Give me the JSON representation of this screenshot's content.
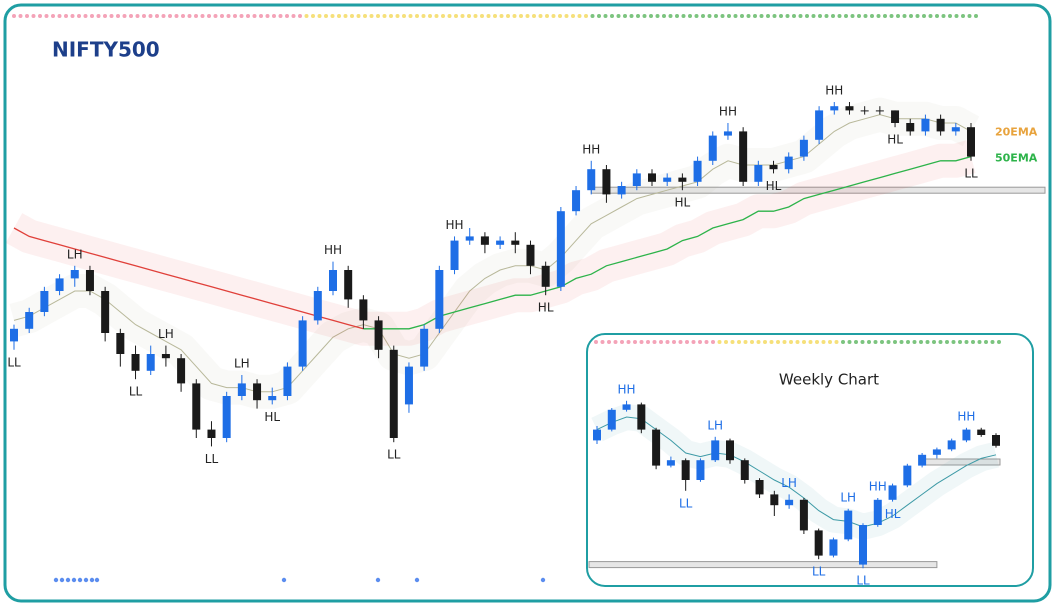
{
  "chart_data": [
    {
      "type": "candlestick",
      "title": "NIFTY500",
      "up_color": "#1e6ee6",
      "down_color": "#1a1a1a",
      "ylim": [
        0,
        100
      ],
      "candles": [
        [
          33,
          37,
          31,
          36
        ],
        [
          36,
          41,
          35,
          40
        ],
        [
          40,
          46,
          39,
          45
        ],
        [
          45,
          49,
          44,
          48
        ],
        [
          48,
          51,
          46,
          50
        ],
        [
          50,
          51,
          44,
          45
        ],
        [
          45,
          46,
          33,
          35
        ],
        [
          35,
          36,
          27,
          30
        ],
        [
          30,
          32,
          24,
          26
        ],
        [
          26,
          32,
          25,
          30
        ],
        [
          30,
          32,
          27,
          29
        ],
        [
          29,
          30,
          21,
          23
        ],
        [
          23,
          24,
          10,
          12
        ],
        [
          12,
          14,
          8,
          10
        ],
        [
          10,
          21,
          9,
          20
        ],
        [
          20,
          25,
          19,
          23
        ],
        [
          23,
          24,
          17,
          19
        ],
        [
          19,
          22,
          18,
          20
        ],
        [
          20,
          28,
          19,
          27
        ],
        [
          27,
          39,
          26,
          38
        ],
        [
          38,
          46,
          37,
          45
        ],
        [
          45,
          52,
          44,
          50
        ],
        [
          50,
          51,
          41,
          43
        ],
        [
          43,
          44,
          36,
          38
        ],
        [
          38,
          39,
          29,
          31
        ],
        [
          31,
          32,
          9,
          10
        ],
        [
          18,
          28,
          16,
          27
        ],
        [
          27,
          37,
          26,
          36
        ],
        [
          36,
          51,
          35,
          50
        ],
        [
          50,
          58,
          49,
          57
        ],
        [
          57,
          60,
          56,
          58
        ],
        [
          58,
          59,
          54,
          56
        ],
        [
          56,
          58,
          55,
          57
        ],
        [
          57,
          59,
          54,
          56
        ],
        [
          56,
          57,
          49,
          51
        ],
        [
          51,
          52,
          44,
          46
        ],
        [
          46,
          65,
          45,
          64
        ],
        [
          64,
          70,
          63,
          69
        ],
        [
          69,
          76,
          68,
          74
        ],
        [
          74,
          75,
          66,
          68
        ],
        [
          68,
          71,
          67,
          70
        ],
        [
          70,
          74,
          69,
          73
        ],
        [
          73,
          74,
          70,
          71
        ],
        [
          71,
          73,
          70,
          72
        ],
        [
          72,
          73,
          69,
          71
        ],
        [
          71,
          77,
          70,
          76
        ],
        [
          76,
          83,
          75,
          82
        ],
        [
          82,
          85,
          81,
          83
        ],
        [
          83,
          84,
          70,
          71
        ],
        [
          71,
          76,
          70,
          75
        ],
        [
          75,
          76,
          73,
          74
        ],
        [
          74,
          78,
          73,
          77
        ],
        [
          77,
          82,
          76,
          81
        ],
        [
          81,
          89,
          80,
          88
        ],
        [
          88,
          90,
          87,
          89
        ],
        [
          89,
          90,
          87,
          88
        ],
        [
          88,
          89,
          87,
          88
        ],
        [
          88,
          89,
          87,
          88
        ],
        [
          88,
          88,
          84,
          85
        ],
        [
          85,
          86,
          82,
          83
        ],
        [
          83,
          87,
          82,
          86
        ],
        [
          86,
          87,
          82,
          83
        ],
        [
          83,
          85,
          82,
          84
        ],
        [
          84,
          85,
          76,
          77
        ]
      ],
      "series": [
        {
          "name": "20EMA",
          "color": "#e8a33d",
          "line_color": "#b8b89a",
          "values": [
            38,
            39,
            41,
            43,
            45,
            45,
            43,
            40,
            37,
            35,
            33,
            31,
            27,
            23,
            22,
            22,
            21,
            21,
            22,
            26,
            30,
            34,
            36,
            37,
            36,
            30,
            29,
            30,
            35,
            40,
            45,
            48,
            50,
            51,
            51,
            50,
            53,
            57,
            61,
            63,
            65,
            67,
            68,
            69,
            70,
            71,
            74,
            76,
            75,
            75,
            75,
            76,
            77,
            80,
            83,
            85,
            86,
            87,
            86,
            86,
            86,
            85,
            85,
            83
          ]
        },
        {
          "name": "50EMA",
          "color": "#2db34a",
          "down_color": "#e0403a",
          "values": [
            60,
            58,
            57,
            56,
            55,
            54,
            53,
            52,
            51,
            50,
            49,
            48,
            47,
            46,
            45,
            44,
            43,
            42,
            41,
            40,
            39,
            38,
            37,
            36,
            36,
            36,
            36,
            37,
            39,
            40,
            41,
            42,
            43,
            44,
            44,
            45,
            46,
            48,
            49,
            51,
            52,
            53,
            54,
            55,
            57,
            58,
            60,
            61,
            62,
            64,
            64,
            65,
            67,
            68,
            69,
            70,
            71,
            72,
            73,
            74,
            75,
            76,
            76,
            77
          ]
        }
      ],
      "support_levels": [
        {
          "value": 69,
          "from": 38
        }
      ],
      "annotations": [
        {
          "text": "LL",
          "at": 0,
          "anchor": "low"
        },
        {
          "text": "LH",
          "at": 4,
          "anchor": "high"
        },
        {
          "text": "LL",
          "at": 8,
          "anchor": "low"
        },
        {
          "text": "LH",
          "at": 10,
          "anchor": "high"
        },
        {
          "text": "LL",
          "at": 13,
          "anchor": "low"
        },
        {
          "text": "LH",
          "at": 15,
          "anchor": "high"
        },
        {
          "text": "HL",
          "at": 17,
          "anchor": "low"
        },
        {
          "text": "HH",
          "at": 21,
          "anchor": "high"
        },
        {
          "text": "LL",
          "at": 25,
          "anchor": "low"
        },
        {
          "text": "HH",
          "at": 29,
          "anchor": "high"
        },
        {
          "text": "HL",
          "at": 35,
          "anchor": "low"
        },
        {
          "text": "HH",
          "at": 38,
          "anchor": "high"
        },
        {
          "text": "HL",
          "at": 44,
          "anchor": "low"
        },
        {
          "text": "HH",
          "at": 47,
          "anchor": "high"
        },
        {
          "text": "HL",
          "at": 50,
          "anchor": "low"
        },
        {
          "text": "HH",
          "at": 54,
          "anchor": "high"
        },
        {
          "text": "HL",
          "at": 58,
          "anchor": "low"
        },
        {
          "text": "LL",
          "at": 63,
          "anchor": "low"
        }
      ]
    },
    {
      "type": "candlestick",
      "title": "Weekly Chart",
      "up_color": "#1e6ee6",
      "down_color": "#1a1a1a",
      "ylim": [
        0,
        100
      ],
      "candles": [
        [
          72,
          80,
          70,
          78
        ],
        [
          78,
          90,
          77,
          89
        ],
        [
          89,
          94,
          88,
          92
        ],
        [
          92,
          93,
          76,
          78
        ],
        [
          78,
          79,
          56,
          58
        ],
        [
          58,
          63,
          57,
          61
        ],
        [
          61,
          62,
          44,
          50
        ],
        [
          50,
          62,
          49,
          61
        ],
        [
          61,
          74,
          60,
          72
        ],
        [
          72,
          73,
          59,
          61
        ],
        [
          61,
          62,
          48,
          50
        ],
        [
          50,
          51,
          40,
          42
        ],
        [
          42,
          44,
          30,
          36
        ],
        [
          36,
          42,
          34,
          39
        ],
        [
          39,
          40,
          20,
          22
        ],
        [
          22,
          23,
          6,
          8
        ],
        [
          8,
          18,
          7,
          17
        ],
        [
          17,
          34,
          16,
          33
        ],
        [
          3,
          26,
          1,
          25
        ],
        [
          25,
          40,
          24,
          39
        ],
        [
          39,
          48,
          38,
          47
        ],
        [
          47,
          59,
          46,
          58
        ],
        [
          58,
          65,
          57,
          64
        ],
        [
          64,
          68,
          62,
          67
        ],
        [
          67,
          73,
          66,
          72
        ],
        [
          72,
          79,
          71,
          78
        ],
        [
          78,
          79,
          74,
          75
        ],
        [
          75,
          76,
          68,
          69
        ]
      ],
      "series": [
        {
          "color": "#3d9aa6",
          "values": [
            78,
            82,
            85,
            84,
            78,
            72,
            65,
            63,
            65,
            64,
            60,
            55,
            50,
            46,
            40,
            33,
            28,
            27,
            24,
            26,
            30,
            36,
            42,
            48,
            53,
            58,
            62,
            64
          ]
        }
      ],
      "support_levels": [
        {
          "value": 60,
          "from": 22
        },
        {
          "value": 3,
          "to": 23
        }
      ],
      "annotation_color": "#1e6ee6",
      "annotations": [
        {
          "text": "HH",
          "at": 2,
          "anchor": "high"
        },
        {
          "text": "LL",
          "at": 6,
          "anchor": "low"
        },
        {
          "text": "LH",
          "at": 8,
          "anchor": "high"
        },
        {
          "text": "LH",
          "at": 13,
          "anchor": "high"
        },
        {
          "text": "LL",
          "at": 15,
          "anchor": "low"
        },
        {
          "text": "LH",
          "at": 17,
          "anchor": "high"
        },
        {
          "text": "LL",
          "at": 18,
          "anchor": "low"
        },
        {
          "text": "HH",
          "at": 19,
          "anchor": "high"
        },
        {
          "text": "HL",
          "at": 20,
          "anchor": "low"
        },
        {
          "text": "HH",
          "at": 25,
          "anchor": "high"
        }
      ]
    }
  ]
}
